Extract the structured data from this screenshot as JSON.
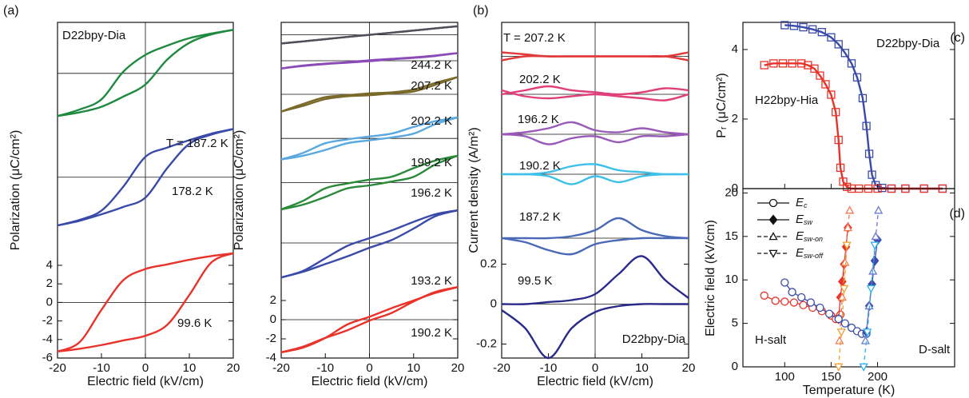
{
  "chart_data": [
    {
      "type": "line",
      "panel_label": "(a)",
      "xlabel": "Electric field (kV/cm)",
      "ylabel": "Polarization (μC/cm²)",
      "xlim": [
        -20,
        20
      ],
      "xticks": [
        -20,
        -10,
        0,
        10,
        20
      ],
      "ylim": [
        -6,
        30.2
      ],
      "yticks": [
        -6,
        -4,
        -2,
        0,
        2,
        4
      ],
      "zero_line": true,
      "annotations": [
        "D22bpy-Dia"
      ],
      "x": [
        -20,
        -15,
        -10,
        -5,
        0,
        5,
        10,
        15,
        20
      ],
      "series": [
        {
          "name": "99.6 K",
          "color": "#e8332a",
          "offset": 0,
          "values": [
            -5.3,
            -5.0,
            -4.6,
            -4.1,
            -3.6,
            -2.4,
            0.8,
            4.3,
            5.3
          ],
          "values_down": [
            -5.3,
            -4.3,
            -0.8,
            2.4,
            3.6,
            4.1,
            4.6,
            5.0,
            5.3
          ]
        },
        {
          "name": "178.2 K",
          "color": "#3a4aa8",
          "offset": 13.5,
          "values": [
            -5.2,
            -4.7,
            -4.0,
            -3.2,
            -2.2,
            1.0,
            3.6,
            4.6,
            5.2
          ],
          "values_down": [
            -5.2,
            -4.6,
            -3.6,
            -1.0,
            2.2,
            3.2,
            4.0,
            4.7,
            5.2
          ]
        },
        {
          "name": "T = 187.2 K",
          "color": "#1f8a3f",
          "offset": 24.7,
          "values": [
            -4.6,
            -4.2,
            -3.6,
            -2.5,
            -1.2,
            1.5,
            3.3,
            4.2,
            4.7
          ],
          "values_down": [
            -4.6,
            -3.9,
            -2.8,
            0.2,
            2.0,
            3.0,
            3.8,
            4.3,
            4.7
          ]
        }
      ]
    },
    {
      "type": "line",
      "xlabel": "Electric field (kV/cm)",
      "ylabel": "Polarization (μC/cm²)",
      "xlim": [
        -20,
        20
      ],
      "xticks": [
        -20,
        -10,
        0,
        10,
        20
      ],
      "ylim": [
        -4,
        31
      ],
      "yticks": [
        -4,
        -2,
        0,
        2
      ],
      "zero_line": true,
      "x": [
        -20,
        -15,
        -10,
        -5,
        0,
        5,
        10,
        15,
        20
      ],
      "series": [
        {
          "name": "190.2 K",
          "color": "#e8332a",
          "offset": 0,
          "values": [
            -3.4,
            -2.8,
            -1.9,
            -1.1,
            -0.1,
            0.7,
            1.9,
            2.9,
            3.4
          ],
          "values_down": [
            -3.4,
            -2.9,
            -1.9,
            -0.5,
            0.3,
            1.2,
            2.0,
            2.8,
            3.4
          ]
        },
        {
          "name": "193.2 K",
          "color": "#3a4aa8",
          "offset": 8,
          "values": [
            -3.6,
            -3.0,
            -2.2,
            -1.4,
            -0.5,
            0.3,
            1.5,
            2.8,
            3.4
          ],
          "values_down": [
            -3.6,
            -2.9,
            -1.6,
            -0.3,
            0.5,
            1.3,
            2.2,
            3.0,
            3.4
          ]
        },
        {
          "name": "196.2 K",
          "color": "#2a8a3a",
          "offset": 14.3,
          "values": [
            -2.8,
            -2.3,
            -1.5,
            -0.6,
            -0.3,
            0.1,
            0.6,
            1.9,
            2.8
          ],
          "values_down": [
            -2.8,
            -1.9,
            -0.6,
            -0.1,
            0.3,
            0.6,
            1.5,
            2.3,
            2.8
          ]
        },
        {
          "name": "199.2 K",
          "color": "#5aa8e0",
          "offset": 18.9,
          "values": [
            -2.2,
            -1.8,
            -1.2,
            -0.5,
            -0.2,
            0.1,
            0.5,
            1.5,
            2.2
          ],
          "values_down": [
            -2.2,
            -1.5,
            -0.5,
            -0.1,
            0.2,
            0.5,
            1.2,
            1.8,
            2.2
          ]
        },
        {
          "name": "202.2 K",
          "color": "#7a6a2a",
          "offset": 23.5,
          "values": [
            -1.8,
            -1.2,
            -0.5,
            -0.2,
            -0.1,
            0.1,
            0.3,
            1.0,
            1.8
          ],
          "values_down": [
            -1.8,
            -1.0,
            -0.3,
            -0.1,
            0.1,
            0.2,
            0.5,
            1.2,
            1.8
          ]
        },
        {
          "name": "207.2 K",
          "color": "#8a4ab8",
          "offset": 27,
          "values": [
            -0.8,
            -0.55,
            -0.35,
            -0.2,
            -0.05,
            0.15,
            0.3,
            0.5,
            0.8
          ],
          "values_down": [
            -0.8,
            -0.5,
            -0.3,
            -0.15,
            0.05,
            0.2,
            0.35,
            0.55,
            0.8
          ]
        },
        {
          "name": "244.2 K",
          "color": "#505058",
          "offset": 29.7,
          "values": [
            -0.9,
            -0.68,
            -0.45,
            -0.22,
            0,
            0.22,
            0.45,
            0.68,
            0.9
          ],
          "values_down": [
            -0.9,
            -0.68,
            -0.45,
            -0.22,
            0,
            0.22,
            0.45,
            0.68,
            0.9
          ]
        }
      ]
    },
    {
      "type": "line",
      "panel_label": "(b)",
      "xlabel": "Electric field (kV/cm)",
      "ylabel": "Current density (A/m²)",
      "xlim": [
        -20,
        20
      ],
      "xticks": [
        -20,
        -10,
        0,
        10,
        20
      ],
      "ylim": [
        -0.27,
        1.41
      ],
      "yticks": [
        -0.2,
        0,
        0.2
      ],
      "zero_line": true,
      "annotations": [
        "D22bpy-Dia"
      ],
      "x": [
        -20,
        -15,
        -10,
        -5,
        0,
        5,
        10,
        15,
        20
      ],
      "series": [
        {
          "name": "99.5 K",
          "color": "#2a2a8c",
          "offset": 0,
          "values": [
            0,
            0,
            0.01,
            0.02,
            0.05,
            0.15,
            0.24,
            0.12,
            0.03
          ],
          "values_down": [
            -0.03,
            -0.12,
            -0.27,
            -0.12,
            -0.04,
            -0.01,
            0,
            0,
            0
          ]
        },
        {
          "name": "187.2 K",
          "color": "#4a6ab8",
          "offset": 0.33,
          "values": [
            0,
            0,
            0,
            0.01,
            0.04,
            0.1,
            0.04,
            0.01,
            0
          ],
          "values_down": [
            0,
            -0.02,
            -0.06,
            -0.08,
            -0.03,
            -0.01,
            0,
            0,
            0
          ]
        },
        {
          "name": "190.2 K",
          "color": "#3ec0e8",
          "offset": 0.65,
          "values": [
            0,
            0,
            0.01,
            0.04,
            0.05,
            0.02,
            0.01,
            0,
            0
          ],
          "values_down": [
            0,
            0,
            -0.01,
            -0.05,
            -0.01,
            -0.04,
            -0.01,
            0,
            0
          ]
        },
        {
          "name": "196.2 K",
          "color": "#9a5ab8",
          "offset": 0.85,
          "values": [
            0,
            0.01,
            0.03,
            0.06,
            0.02,
            0.01,
            0.03,
            0.01,
            0
          ],
          "values_down": [
            0,
            -0.01,
            -0.05,
            -0.02,
            -0.01,
            -0.04,
            -0.01,
            -0.01,
            0
          ]
        },
        {
          "name": "202.2 K",
          "color": "#e0407a",
          "offset": 1.05,
          "values": [
            0,
            0.02,
            0.04,
            0.02,
            0.01,
            0,
            0.01,
            0.03,
            0.02
          ],
          "values_down": [
            0.02,
            -0.01,
            -0.02,
            -0.01,
            0,
            -0.01,
            -0.02,
            -0.03,
            0
          ]
        },
        {
          "name": "T = 207.2 K",
          "color": "#e03a3a",
          "offset": 1.24,
          "values": [
            0.02,
            0.01,
            0,
            0,
            0,
            0,
            0,
            0,
            0.02
          ],
          "values_down": [
            -0.02,
            0,
            0,
            0,
            0,
            0,
            0,
            0,
            -0.02
          ]
        }
      ]
    },
    {
      "type": "line",
      "panel_label": "(c)",
      "ylabel": "Pᵣ (μC/cm²)",
      "marker": "square",
      "xlim": [
        55,
        283
      ],
      "ylim": [
        0,
        4.78
      ],
      "yticks": [
        0,
        2,
        4
      ],
      "series": [
        {
          "name": "D22bpy-Dia",
          "color": "#3a4aa8",
          "x": [
            100,
            110,
            120,
            130,
            140,
            150,
            158,
            165,
            172,
            178,
            184,
            188,
            191,
            194,
            198,
            205,
            215,
            230,
            250,
            270
          ],
          "values": [
            4.7,
            4.68,
            4.64,
            4.58,
            4.5,
            4.35,
            4.15,
            3.9,
            3.6,
            3.2,
            2.6,
            1.8,
            1.0,
            0.4,
            0.1,
            0.02,
            0,
            0,
            0,
            0
          ]
        },
        {
          "name": "H22bpy-Hia",
          "color": "#e8332a",
          "x": [
            78,
            88,
            98,
            108,
            118,
            125,
            132,
            138,
            144,
            150,
            155,
            158,
            160,
            163,
            167,
            172,
            180,
            190,
            200,
            215,
            230,
            250,
            270
          ],
          "values": [
            3.55,
            3.6,
            3.6,
            3.6,
            3.6,
            3.55,
            3.45,
            3.25,
            3.0,
            2.7,
            2.2,
            1.4,
            0.6,
            0.2,
            0.05,
            0,
            0,
            0,
            0,
            0,
            0,
            0,
            0
          ]
        }
      ]
    },
    {
      "type": "scatter",
      "panel_label": "(d)",
      "xlabel": "Temperature (K)",
      "ylabel": "Electric field (kV/cm)",
      "xlim": [
        55,
        283
      ],
      "xticks": [
        100,
        150,
        200
      ],
      "ylim": [
        0,
        20.5
      ],
      "yticks": [
        0,
        5,
        10,
        15,
        20
      ],
      "annotations": [
        "H-salt",
        "D-salt"
      ],
      "legend": [
        {
          "symbol": "E",
          "sub": "c",
          "marker": "circle",
          "dash": false
        },
        {
          "symbol": "E",
          "sub": "sw",
          "marker": "diamond",
          "dash": false
        },
        {
          "symbol": "E",
          "sub": "sw-on",
          "marker": "triangle-up",
          "dash": true
        },
        {
          "symbol": "E",
          "sub": "sw-off",
          "marker": "triangle-down",
          "dash": true
        }
      ],
      "series": [
        {
          "marker": "circle",
          "dash": false,
          "color": "#e8332a",
          "x": [
            78,
            90,
            100,
            110,
            120,
            130,
            140,
            150,
            155,
            160
          ],
          "values": [
            8.2,
            7.6,
            7.5,
            7.4,
            7.1,
            6.8,
            6.4,
            5.9,
            5.5,
            6.0
          ]
        },
        {
          "marker": "diamond",
          "dash": false,
          "color": "#e8332a",
          "x": [
            158,
            160,
            162,
            164,
            166,
            168
          ],
          "values": [
            5.5,
            8.0,
            9.8,
            11.8,
            13.8,
            16.0
          ]
        },
        {
          "marker": "triangle-up",
          "dash": true,
          "color": "#f07a50",
          "x": [
            159,
            162,
            165,
            168,
            170
          ],
          "values": [
            3,
            8,
            12,
            16,
            18
          ]
        },
        {
          "marker": "triangle-down",
          "dash": true,
          "color": "#f0a030",
          "x": [
            158,
            161,
            164,
            167
          ],
          "values": [
            0,
            4,
            9,
            14
          ]
        },
        {
          "marker": "circle",
          "dash": false,
          "color": "#3a4aa8",
          "x": [
            100,
            108,
            118,
            128,
            138,
            148,
            158,
            165,
            172,
            178,
            183,
            188
          ],
          "values": [
            9.7,
            8.6,
            8.0,
            7.4,
            6.8,
            6.1,
            5.5,
            5.0,
            4.5,
            4.1,
            3.8,
            3.8
          ]
        },
        {
          "marker": "diamond",
          "dash": false,
          "color": "#3a4aa8",
          "x": [
            188,
            191,
            194,
            197,
            200
          ],
          "values": [
            4.0,
            7.0,
            9.5,
            12.2,
            14.6
          ]
        },
        {
          "marker": "triangle-up",
          "dash": true,
          "color": "#6a7ad0",
          "x": [
            187,
            191,
            195,
            198,
            201
          ],
          "values": [
            3,
            7,
            11,
            15,
            18
          ]
        },
        {
          "marker": "triangle-down",
          "dash": true,
          "color": "#30b0e8",
          "x": [
            185,
            189,
            193,
            197
          ],
          "values": [
            0,
            4,
            9,
            14
          ]
        }
      ]
    }
  ]
}
